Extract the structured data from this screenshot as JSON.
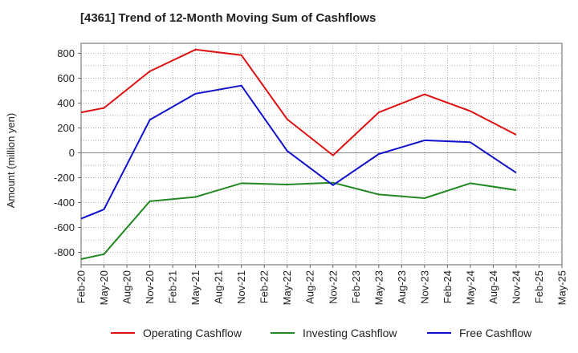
{
  "chart_data": {
    "type": "line",
    "title": "[4361]  Trend of 12-Month Moving Sum of Cashflows",
    "ylabel": "Amount (million yen)",
    "xlabel": "",
    "ylim": [
      -900,
      880
    ],
    "yticks": [
      800,
      600,
      400,
      200,
      0,
      -200,
      -400,
      -600,
      -800
    ],
    "x": [
      "Feb-20",
      "May-20",
      "Aug-20",
      "Nov-20",
      "Feb-21",
      "May-21",
      "Aug-21",
      "Nov-21",
      "Feb-22",
      "May-22",
      "Aug-22",
      "Nov-22",
      "Feb-23",
      "May-23",
      "Aug-23",
      "Nov-23",
      "Feb-24",
      "May-24",
      "Aug-24",
      "Nov-24",
      "Feb-25",
      "May-25"
    ],
    "grid": true,
    "legend_position": "bottom",
    "series": [
      {
        "name": "Operating Cashflow",
        "color": "#dd1111",
        "points": [
          {
            "x": "Feb-20",
            "y": 325
          },
          {
            "x": "May-20",
            "y": 360
          },
          {
            "x": "Nov-20",
            "y": 655
          },
          {
            "x": "May-21",
            "y": 830
          },
          {
            "x": "Nov-21",
            "y": 785
          },
          {
            "x": "May-22",
            "y": 270
          },
          {
            "x": "Nov-22",
            "y": -20
          },
          {
            "x": "May-23",
            "y": 325
          },
          {
            "x": "Nov-23",
            "y": 470
          },
          {
            "x": "May-24",
            "y": 335
          },
          {
            "x": "Nov-24",
            "y": 145
          }
        ]
      },
      {
        "name": "Investing Cashflow",
        "color": "#228822",
        "points": [
          {
            "x": "Feb-20",
            "y": -855
          },
          {
            "x": "May-20",
            "y": -815
          },
          {
            "x": "Nov-20",
            "y": -390
          },
          {
            "x": "May-21",
            "y": -355
          },
          {
            "x": "Nov-21",
            "y": -245
          },
          {
            "x": "May-22",
            "y": -255
          },
          {
            "x": "Nov-22",
            "y": -240
          },
          {
            "x": "May-23",
            "y": -335
          },
          {
            "x": "Nov-23",
            "y": -365
          },
          {
            "x": "May-24",
            "y": -245
          },
          {
            "x": "Nov-24",
            "y": -300
          }
        ]
      },
      {
        "name": "Free Cashflow",
        "color": "#1111cc",
        "points": [
          {
            "x": "Feb-20",
            "y": -530
          },
          {
            "x": "May-20",
            "y": -455
          },
          {
            "x": "Nov-20",
            "y": 265
          },
          {
            "x": "May-21",
            "y": 475
          },
          {
            "x": "Nov-21",
            "y": 540
          },
          {
            "x": "May-22",
            "y": 15
          },
          {
            "x": "Nov-22",
            "y": -260
          },
          {
            "x": "May-23",
            "y": -10
          },
          {
            "x": "Nov-23",
            "y": 100
          },
          {
            "x": "May-24",
            "y": 85
          },
          {
            "x": "Nov-24",
            "y": -160
          }
        ]
      }
    ]
  }
}
